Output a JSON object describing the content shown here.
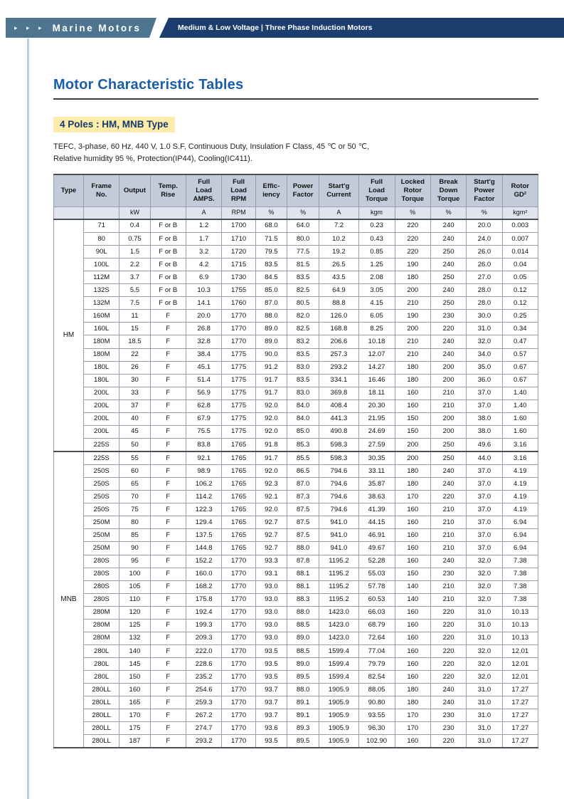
{
  "colors": {
    "brand_bar": "#4e758f",
    "ribbon": "#1c3e6e",
    "title": "#1a5dad",
    "section_highlight": "#fdecaa",
    "table_header_bg": "#c2cbda",
    "accent_line": "#b5d0e2"
  },
  "header": {
    "arrows": "▸ ▸ ▸",
    "brand": "Marine Motors",
    "category": "Medium & Low Voltage  |  Three Phase Induction Motors"
  },
  "page": {
    "title": "Motor Characteristic Tables",
    "section_title": "4 Poles : HM, MNB Type",
    "description": [
      "TEFC, 3-phase, 60 Hz, 440 V, 1.0 S.F, Continuous Duty, Insulation F Class, 45 ℃ or 50 ℃,",
      "Relative humidity 95 %, Protection(IP44), Cooling(IC411)."
    ]
  },
  "table": {
    "columns": [
      {
        "label": "Type",
        "unit": ""
      },
      {
        "label": "Frame\nNo.",
        "unit": ""
      },
      {
        "label": "Output",
        "unit": "kW"
      },
      {
        "label": "Temp.\nRise",
        "unit": ""
      },
      {
        "label": "Full\nLoad\nAMPS.",
        "unit": "A"
      },
      {
        "label": "Full\nLoad\nRPM",
        "unit": "RPM"
      },
      {
        "label": "Effic-\niency",
        "unit": "%"
      },
      {
        "label": "Power\nFactor",
        "unit": "%"
      },
      {
        "label": "Start'g\nCurrent",
        "unit": "A"
      },
      {
        "label": "Full\nLoad\nTorque",
        "unit": "kgm"
      },
      {
        "label": "Locked\nRotor\nTorque",
        "unit": "%"
      },
      {
        "label": "Break\nDown\nTorque",
        "unit": "%"
      },
      {
        "label": "Start'g\nPower\nFactor",
        "unit": "%"
      },
      {
        "label": "Rotor\nGD²",
        "unit": "kgm²"
      }
    ],
    "groups": [
      {
        "type": "HM",
        "rows": [
          [
            "71",
            "0.4",
            "F or B",
            "1.2",
            "1700",
            "68.0",
            "64.0",
            "7.2",
            "0.23",
            "220",
            "240",
            "20.0",
            "0.003"
          ],
          [
            "80",
            "0.75",
            "F or B",
            "1.7",
            "1710",
            "71.5",
            "80.0",
            "10.2",
            "0.43",
            "220",
            "240",
            "24.0",
            "0.007"
          ],
          [
            "90L",
            "1.5",
            "F or B",
            "3.2",
            "1720",
            "79.5",
            "77.5",
            "19.2",
            "0.85",
            "220",
            "250",
            "26.0",
            "0.014"
          ],
          [
            "100L",
            "2.2",
            "F or B",
            "4.2",
            "1715",
            "83.5",
            "81.5",
            "26.5",
            "1.25",
            "190",
            "240",
            "26.0",
            "0.04"
          ],
          [
            "112M",
            "3.7",
            "F or B",
            "6.9",
            "1730",
            "84.5",
            "83.5",
            "43.5",
            "2.08",
            "180",
            "250",
            "27.0",
            "0.05"
          ],
          [
            "132S",
            "5.5",
            "F or B",
            "10.3",
            "1755",
            "85.0",
            "82.5",
            "64.9",
            "3.05",
            "200",
            "240",
            "28.0",
            "0.12"
          ],
          [
            "132M",
            "7.5",
            "F or B",
            "14.1",
            "1760",
            "87.0",
            "80.5",
            "88.8",
            "4.15",
            "210",
            "250",
            "28.0",
            "0.12"
          ],
          [
            "160M",
            "11",
            "F",
            "20.0",
            "1770",
            "88.0",
            "82.0",
            "126.0",
            "6.05",
            "190",
            "230",
            "30.0",
            "0.25"
          ],
          [
            "160L",
            "15",
            "F",
            "26.8",
            "1770",
            "89.0",
            "82.5",
            "168.8",
            "8.25",
            "200",
            "220",
            "31.0",
            "0.34"
          ],
          [
            "180M",
            "18.5",
            "F",
            "32.8",
            "1770",
            "89.0",
            "83.2",
            "206.6",
            "10.18",
            "210",
            "240",
            "32.0",
            "0.47"
          ],
          [
            "180M",
            "22",
            "F",
            "38.4",
            "1775",
            "90.0",
            "83.5",
            "257.3",
            "12.07",
            "210",
            "240",
            "34.0",
            "0.57"
          ],
          [
            "180L",
            "26",
            "F",
            "45.1",
            "1775",
            "91.2",
            "83.0",
            "293.2",
            "14.27",
            "180",
            "200",
            "35.0",
            "0.67"
          ],
          [
            "180L",
            "30",
            "F",
            "51.4",
            "1775",
            "91.7",
            "83.5",
            "334.1",
            "16.46",
            "180",
            "200",
            "36.0",
            "0.67"
          ],
          [
            "200L",
            "33",
            "F",
            "56.9",
            "1775",
            "91.7",
            "83.0",
            "369.8",
            "18.11",
            "160",
            "210",
            "37.0",
            "1.40"
          ],
          [
            "200L",
            "37",
            "F",
            "62.8",
            "1775",
            "92.0",
            "84.0",
            "408.4",
            "20.30",
            "160",
            "210",
            "37.0",
            "1.40"
          ],
          [
            "200L",
            "40",
            "F",
            "67.9",
            "1775",
            "92.0",
            "84.0",
            "441.3",
            "21.95",
            "150",
            "200",
            "38.0",
            "1.60"
          ],
          [
            "200L",
            "45",
            "F",
            "75.5",
            "1775",
            "92.0",
            "85.0",
            "490.8",
            "24.69",
            "150",
            "200",
            "38.0",
            "1.60"
          ],
          [
            "225S",
            "50",
            "F",
            "83.8",
            "1765",
            "91.8",
            "85.3",
            "598.3",
            "27.59",
            "200",
            "250",
            "49.6",
            "3.16"
          ]
        ]
      },
      {
        "type": "MNB",
        "rows": [
          [
            "225S",
            "55",
            "F",
            "92.1",
            "1765",
            "91.7",
            "85.5",
            "598.3",
            "30.35",
            "200",
            "250",
            "44.0",
            "3.16"
          ],
          [
            "250S",
            "60",
            "F",
            "98.9",
            "1765",
            "92.0",
            "86.5",
            "794.6",
            "33.11",
            "180",
            "240",
            "37.0",
            "4.19"
          ],
          [
            "250S",
            "65",
            "F",
            "106.2",
            "1765",
            "92.3",
            "87.0",
            "794.6",
            "35.87",
            "180",
            "240",
            "37.0",
            "4.19"
          ],
          [
            "250S",
            "70",
            "F",
            "114.2",
            "1765",
            "92.1",
            "87.3",
            "794.6",
            "38.63",
            "170",
            "220",
            "37.0",
            "4.19"
          ],
          [
            "250S",
            "75",
            "F",
            "122.3",
            "1765",
            "92.0",
            "87.5",
            "794.6",
            "41.39",
            "160",
            "210",
            "37.0",
            "4.19"
          ],
          [
            "250M",
            "80",
            "F",
            "129.4",
            "1765",
            "92.7",
            "87.5",
            "941.0",
            "44.15",
            "160",
            "210",
            "37.0",
            "6.94"
          ],
          [
            "250M",
            "85",
            "F",
            "137.5",
            "1765",
            "92.7",
            "87.5",
            "941.0",
            "46.91",
            "160",
            "210",
            "37.0",
            "6.94"
          ],
          [
            "250M",
            "90",
            "F",
            "144.8",
            "1765",
            "92.7",
            "88.0",
            "941.0",
            "49.67",
            "160",
            "210",
            "37.0",
            "6.94"
          ],
          [
            "280S",
            "95",
            "F",
            "152.2",
            "1770",
            "93.3",
            "87.8",
            "1195.2",
            "52.28",
            "160",
            "240",
            "32.0",
            "7.38"
          ],
          [
            "280S",
            "100",
            "F",
            "160.0",
            "1770",
            "93.1",
            "88.1",
            "1195.2",
            "55.03",
            "150",
            "230",
            "32.0",
            "7.38"
          ],
          [
            "280S",
            "105",
            "F",
            "168.2",
            "1770",
            "93.0",
            "88.1",
            "1195.2",
            "57.78",
            "140",
            "210",
            "32.0",
            "7.38"
          ],
          [
            "280S",
            "110",
            "F",
            "175.8",
            "1770",
            "93.0",
            "88.3",
            "1195.2",
            "60.53",
            "140",
            "210",
            "32.0",
            "7.38"
          ],
          [
            "280M",
            "120",
            "F",
            "192.4",
            "1770",
            "93.0",
            "88.0",
            "1423.0",
            "66.03",
            "160",
            "220",
            "31.0",
            "10.13"
          ],
          [
            "280M",
            "125",
            "F",
            "199.3",
            "1770",
            "93.0",
            "88.5",
            "1423.0",
            "68.79",
            "160",
            "220",
            "31.0",
            "10.13"
          ],
          [
            "280M",
            "132",
            "F",
            "209.3",
            "1770",
            "93.0",
            "89.0",
            "1423.0",
            "72.64",
            "160",
            "220",
            "31.0",
            "10.13"
          ],
          [
            "280L",
            "140",
            "F",
            "222.0",
            "1770",
            "93.5",
            "88.5",
            "1599.4",
            "77.04",
            "160",
            "220",
            "32.0",
            "12.01"
          ],
          [
            "280L",
            "145",
            "F",
            "228.6",
            "1770",
            "93.5",
            "89.0",
            "1599.4",
            "79.79",
            "160",
            "220",
            "32.0",
            "12.01"
          ],
          [
            "280L",
            "150",
            "F",
            "235.2",
            "1770",
            "93.5",
            "89.5",
            "1599.4",
            "82.54",
            "160",
            "220",
            "32.0",
            "12.01"
          ],
          [
            "280LL",
            "160",
            "F",
            "254.6",
            "1770",
            "93.7",
            "88.0",
            "1905.9",
            "88.05",
            "180",
            "240",
            "31.0",
            "17.27"
          ],
          [
            "280LL",
            "165",
            "F",
            "259.3",
            "1770",
            "93.7",
            "89.1",
            "1905.9",
            "90.80",
            "180",
            "240",
            "31.0",
            "17.27"
          ],
          [
            "280LL",
            "170",
            "F",
            "267.2",
            "1770",
            "93.7",
            "89.1",
            "1905.9",
            "93.55",
            "170",
            "230",
            "31.0",
            "17.27"
          ],
          [
            "280LL",
            "175",
            "F",
            "274.7",
            "1770",
            "93.6",
            "89.3",
            "1905.9",
            "96.30",
            "170",
            "230",
            "31.0",
            "17.27"
          ],
          [
            "280LL",
            "187",
            "F",
            "293.2",
            "1770",
            "93.5",
            "89.5",
            "1905.9",
            "102.90",
            "160",
            "220",
            "31.0",
            "17.27"
          ]
        ]
      }
    ]
  }
}
